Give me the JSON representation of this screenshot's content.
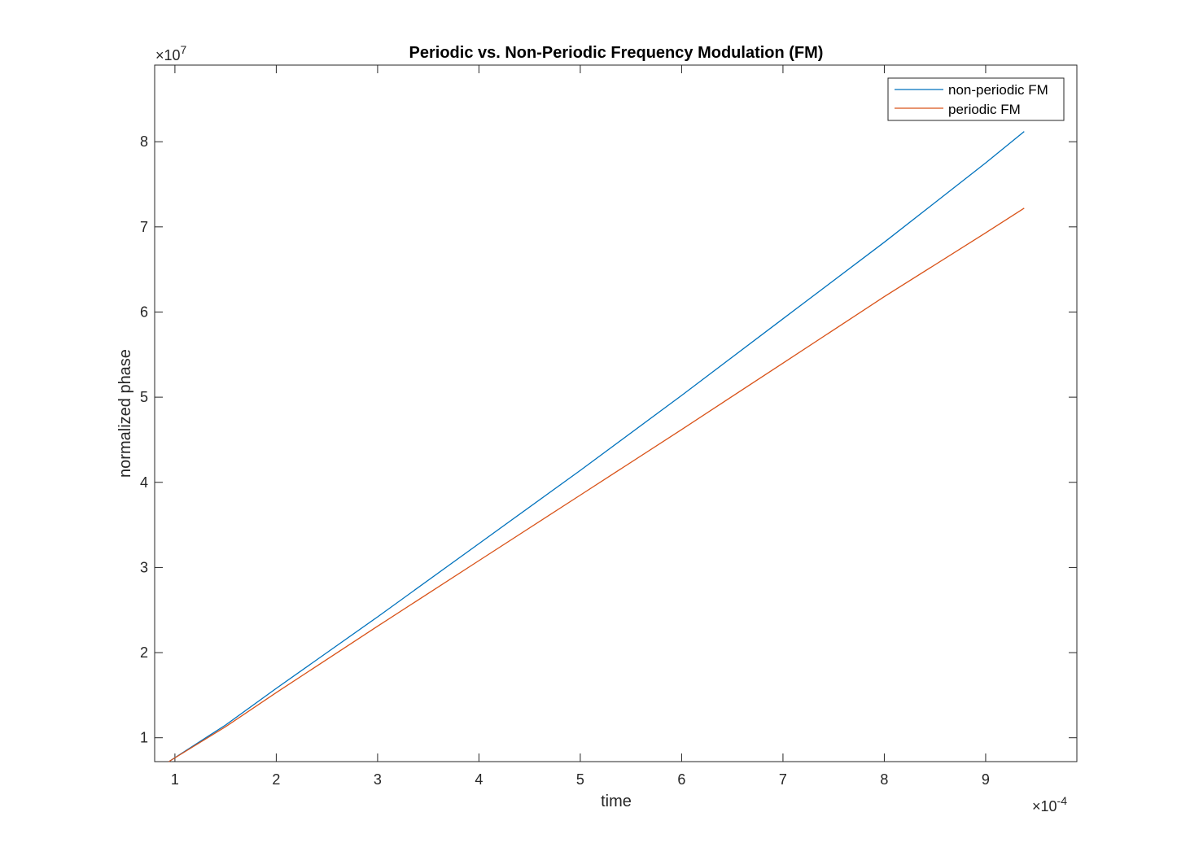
{
  "chart_data": {
    "type": "line",
    "title": "Periodic vs. Non-Periodic Frequency Modulation (FM)",
    "xlabel": "time",
    "ylabel": "normalized phase",
    "x_exponent": "×10",
    "x_exponent_power": "-4",
    "y_exponent": "×10",
    "y_exponent_power": "7",
    "xlim": [
      0.8,
      9.9
    ],
    "ylim": [
      0.72,
      8.9
    ],
    "x_ticks": [
      1,
      2,
      3,
      4,
      5,
      6,
      7,
      8,
      9
    ],
    "x_tick_labels": [
      "1",
      "2",
      "3",
      "4",
      "5",
      "6",
      "7",
      "8",
      "9"
    ],
    "y_ticks": [
      1,
      2,
      3,
      4,
      5,
      6,
      7,
      8
    ],
    "y_tick_labels": [
      "1",
      "2",
      "3",
      "4",
      "5",
      "6",
      "7",
      "8"
    ],
    "grid": false,
    "legend_position": "top-right",
    "series": [
      {
        "name": "non-periodic FM",
        "color": "#0072BD",
        "x": [
          0.94,
          1.5,
          2.0,
          3.0,
          4.0,
          5.0,
          6.0,
          7.0,
          8.0,
          9.0,
          9.38
        ],
        "y": [
          0.72,
          1.15,
          1.58,
          2.42,
          3.28,
          4.14,
          5.02,
          5.92,
          6.82,
          7.75,
          8.12
        ]
      },
      {
        "name": "periodic FM",
        "color": "#D95319",
        "x": [
          0.94,
          1.5,
          2.0,
          3.0,
          4.0,
          5.0,
          6.0,
          7.0,
          8.0,
          9.0,
          9.38
        ],
        "y": [
          0.72,
          1.13,
          1.53,
          2.31,
          3.08,
          3.85,
          4.62,
          5.4,
          6.18,
          6.93,
          7.22
        ]
      }
    ]
  }
}
